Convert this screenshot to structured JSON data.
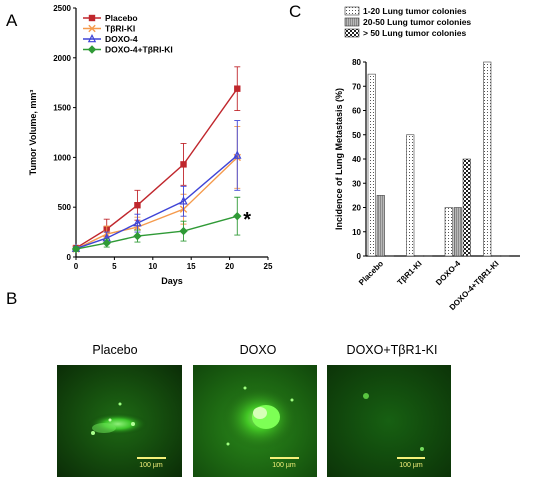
{
  "panel_labels": {
    "a": "A",
    "b": "B",
    "c": "C"
  },
  "chart_data": [
    {
      "type": "line",
      "panel": "A",
      "xlabel": "Days",
      "ylabel": "Tumor Volume, mm³",
      "xlim": [
        0,
        25
      ],
      "ylim": [
        0,
        2500
      ],
      "x_ticks": [
        "0",
        "5",
        "10",
        "15",
        "20",
        "25"
      ],
      "y_ticks": [
        "0",
        "500",
        "1000",
        "1500",
        "2000",
        "2500"
      ],
      "legend_position": "top-left",
      "annotation": "*",
      "series": [
        {
          "name": "Placebo",
          "color": "#c0272d",
          "marker": "square",
          "x": [
            0,
            4,
            8,
            14,
            21
          ],
          "y": [
            90,
            280,
            520,
            930,
            1690
          ],
          "err": [
            20,
            100,
            150,
            210,
            220
          ]
        },
        {
          "name": "TβRI-KI",
          "color": "#f59a4c",
          "marker": "x",
          "x": [
            0,
            4,
            8,
            14,
            21
          ],
          "y": [
            80,
            230,
            300,
            480,
            1000
          ],
          "err": [
            20,
            80,
            100,
            150,
            310
          ]
        },
        {
          "name": "DOXO-4",
          "color": "#3f44d6",
          "marker": "triangle",
          "x": [
            0,
            4,
            8,
            14,
            21
          ],
          "y": [
            85,
            190,
            340,
            560,
            1020
          ],
          "err": [
            20,
            60,
            90,
            150,
            350
          ]
        },
        {
          "name": "DOXO-4+TβRI-KI",
          "color": "#2f9a36",
          "marker": "diamond",
          "x": [
            0,
            4,
            8,
            14,
            21
          ],
          "y": [
            80,
            140,
            210,
            260,
            410
          ],
          "err": [
            20,
            40,
            60,
            100,
            190
          ]
        }
      ]
    },
    {
      "type": "bar",
      "panel": "C",
      "ylabel": "Incidence of Lung Metastasis (%)",
      "ylim": [
        0,
        80
      ],
      "y_ticks": [
        "0",
        "10",
        "20",
        "30",
        "40",
        "50",
        "60",
        "70",
        "80"
      ],
      "categories": [
        "Placebo",
        "TβR1-KI",
        "DOXO-4",
        "DOXO-4+TβR1-KI"
      ],
      "legend_position": "top",
      "series": [
        {
          "name": "1-20 Lung tumor colonies",
          "pattern": "dots",
          "values": [
            75,
            50,
            20,
            80
          ]
        },
        {
          "name": "20-50 Lung tumor colonies",
          "pattern": "gray",
          "values": [
            25,
            0,
            20,
            0
          ]
        },
        {
          "name": "> 50 Lung tumor colonies",
          "pattern": "checker",
          "values": [
            0,
            0,
            40,
            0
          ]
        }
      ]
    }
  ],
  "micrographs": [
    {
      "title": "Placebo",
      "scale_label": "100 µm"
    },
    {
      "title": "DOXO",
      "scale_label": "100 µm"
    },
    {
      "title": "DOXO+TβR1-KI",
      "scale_label": "100 µm"
    }
  ]
}
